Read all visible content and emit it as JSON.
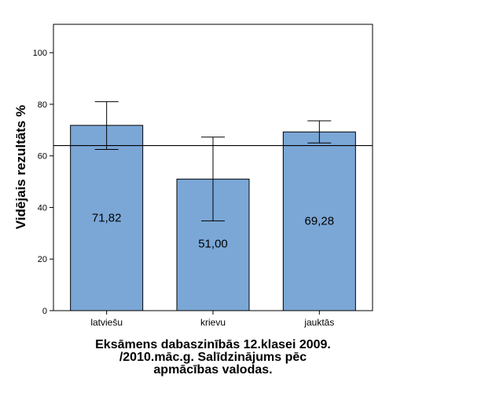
{
  "chart_data": {
    "type": "bar",
    "categories": [
      "latviešu",
      "krievu",
      "jauktās"
    ],
    "values": [
      71.82,
      51.0,
      69.28
    ],
    "value_labels": [
      "71,82",
      "51,00",
      "69,28"
    ],
    "error_bars": [
      {
        "low": 62.5,
        "high": 81.0
      },
      {
        "low": 34.8,
        "high": 67.3
      },
      {
        "low": 65.0,
        "high": 73.6
      }
    ],
    "reference_line": 64.0,
    "ylabel": "Vidējais rezultāts %",
    "xlabel_lines": [
      "Eksāmens dabaszinībās 12.klasei 2009.",
      "/2010.māc.g. Salīdzinājums pēc",
      "apmācības valodas."
    ],
    "ylim": [
      0,
      111
    ],
    "yticks": [
      0,
      20,
      40,
      60,
      80,
      100
    ],
    "grid": false,
    "bar_color": "#7ba7d7",
    "frame_color": "#000000"
  }
}
